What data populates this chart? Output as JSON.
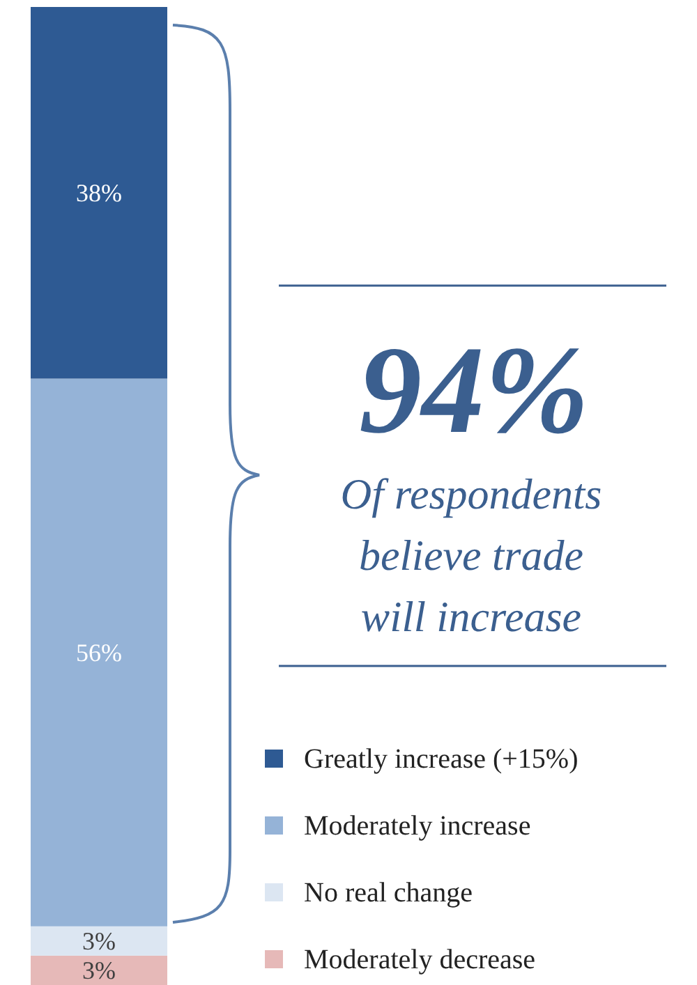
{
  "chart_data": {
    "type": "bar",
    "stacked": true,
    "legend": "bottom right",
    "categories": [
      null
    ],
    "series": [
      {
        "name": "Moderately decrease",
        "color": "#e6b9b8",
        "values": [
          3
        ],
        "value_labels": [
          "3%"
        ]
      },
      {
        "name": "No real change",
        "color": "#dce6f2",
        "values": [
          3
        ],
        "value_labels": [
          "3%"
        ]
      },
      {
        "name": "Moderately increase",
        "color": "#95b3d7",
        "values": [
          56
        ],
        "value_labels": [
          "56%"
        ]
      },
      {
        "name": "Greatly increase (+15%)",
        "color": "#2e5a93",
        "values": [
          38
        ],
        "value_labels": [
          "38%"
        ]
      }
    ],
    "annotations": [
      "94%",
      "Of respondents believe trade will increase"
    ]
  }
}
